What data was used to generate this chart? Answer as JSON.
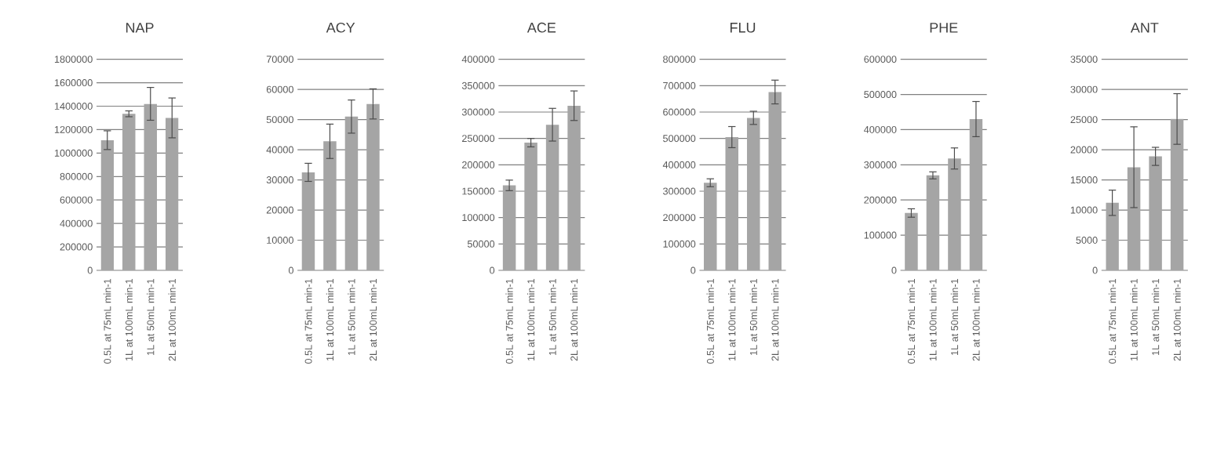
{
  "chart_data": [
    {
      "type": "bar",
      "title": "NAP",
      "categories": [
        "0.5L at 75mL min-1",
        "1L at 100mL min-1",
        "1L at 50mL min-1",
        "2L at 100mL min-1"
      ],
      "values": [
        1110000,
        1335000,
        1420000,
        1300000
      ],
      "errors": [
        80000,
        25000,
        140000,
        170000
      ],
      "color": "#a5a5a5",
      "ylim": [
        0,
        1800000
      ],
      "yticks": [
        0,
        200000,
        400000,
        600000,
        800000,
        1000000,
        1200000,
        1400000,
        1600000,
        1800000
      ],
      "grid": "y"
    },
    {
      "type": "bar",
      "title": "ACY",
      "categories": [
        "0.5L at 75mL min-1",
        "1L at 100mL min-1",
        "1L at 50mL min-1",
        "2L at 100mL min-1"
      ],
      "values": [
        32500,
        42800,
        51000,
        55200
      ],
      "errors": [
        3000,
        5700,
        5500,
        5000
      ],
      "color": "#a5a5a5",
      "ylim": [
        0,
        70000
      ],
      "yticks": [
        0,
        10000,
        20000,
        30000,
        40000,
        50000,
        60000,
        70000
      ],
      "grid": "y"
    },
    {
      "type": "bar",
      "title": "ACE",
      "categories": [
        "0.5L at 75mL min-1",
        "1L at 100mL min-1",
        "1L at 50mL min-1",
        "2L at 100mL min-1"
      ],
      "values": [
        161000,
        242000,
        276000,
        312000
      ],
      "errors": [
        10000,
        8000,
        31000,
        28000
      ],
      "color": "#a5a5a5",
      "ylim": [
        0,
        400000
      ],
      "yticks": [
        0,
        50000,
        100000,
        150000,
        200000,
        250000,
        300000,
        350000,
        400000
      ],
      "grid": "y"
    },
    {
      "type": "bar",
      "title": "FLU",
      "categories": [
        "0.5L at 75mL min-1",
        "1L at 100mL min-1",
        "1L at 50mL min-1",
        "2L at 100mL min-1"
      ],
      "values": [
        332000,
        505000,
        578000,
        676000
      ],
      "errors": [
        15000,
        40000,
        25000,
        45000
      ],
      "color": "#a5a5a5",
      "ylim": [
        0,
        800000
      ],
      "yticks": [
        0,
        100000,
        200000,
        300000,
        400000,
        500000,
        600000,
        700000,
        800000
      ],
      "grid": "y"
    },
    {
      "type": "bar",
      "title": "PHE",
      "categories": [
        "0.5L at 75mL min-1",
        "1L at 100mL min-1",
        "1L at 50mL min-1",
        "2L at 100mL min-1"
      ],
      "values": [
        163000,
        270000,
        318000,
        430000
      ],
      "errors": [
        12000,
        10000,
        30000,
        50000
      ],
      "color": "#a5a5a5",
      "ylim": [
        0,
        600000
      ],
      "yticks": [
        0,
        100000,
        200000,
        300000,
        400000,
        500000,
        600000
      ],
      "grid": "y"
    },
    {
      "type": "bar",
      "title": "ANT",
      "categories": [
        "0.5L at 75mL min-1",
        "1L at 100mL min-1",
        "1L at 50mL min-1",
        "2L at 100mL min-1"
      ],
      "values": [
        11200,
        17100,
        18900,
        25100
      ],
      "errors": [
        2100,
        6700,
        1500,
        4200
      ],
      "color": "#a5a5a5",
      "ylim": [
        0,
        35000
      ],
      "yticks": [
        0,
        5000,
        10000,
        15000,
        20000,
        25000,
        30000,
        35000
      ],
      "grid": "y"
    }
  ]
}
